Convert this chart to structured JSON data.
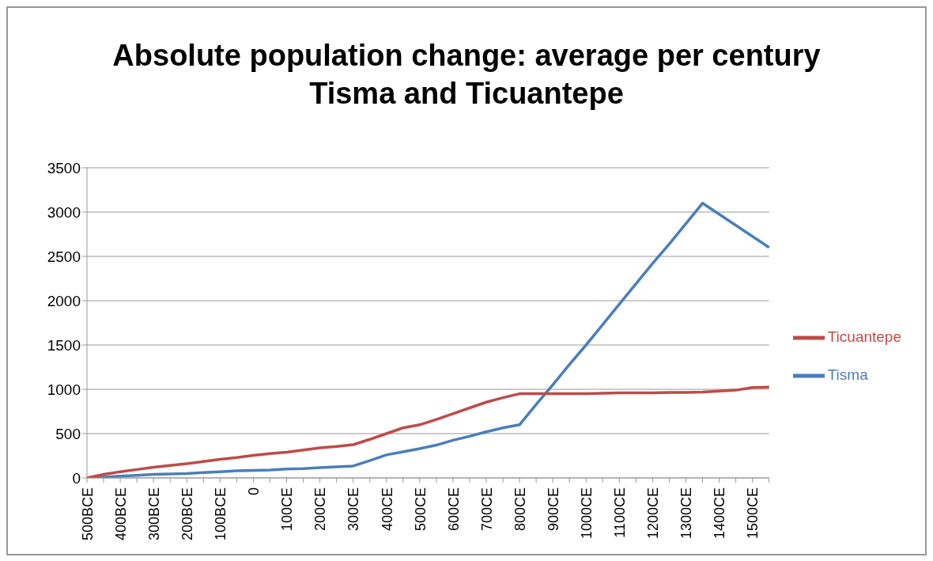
{
  "chart_data": {
    "type": "line",
    "title": "Absolute population change: average per century\nTisma and Ticuantepe",
    "categories": [
      "500BCE",
      null,
      "400BCE",
      null,
      "300BCE",
      null,
      "200BCE",
      null,
      "100BCE",
      null,
      "0",
      null,
      "100CE",
      null,
      "200CE",
      null,
      "300CE",
      null,
      "400CE",
      null,
      "500CE",
      null,
      "600CE",
      null,
      "700CE",
      null,
      "800CE",
      null,
      "900CE",
      null,
      "1000CE",
      null,
      "1100CE",
      null,
      "1200CE",
      null,
      "1300CE",
      null,
      "1400CE",
      null,
      "1500CE",
      null
    ],
    "series": [
      {
        "name": "Tisma",
        "color": "#4a7ebb",
        "values": [
          0,
          10,
          20,
          30,
          40,
          45,
          50,
          60,
          70,
          80,
          85,
          90,
          100,
          105,
          115,
          125,
          135,
          195,
          260,
          295,
          330,
          370,
          425,
          470,
          520,
          565,
          600,
          830,
          1050,
          1280,
          1500,
          1730,
          1960,
          2190,
          2420,
          2640,
          2870,
          3100,
          2975,
          2850,
          2725,
          2600
        ]
      },
      {
        "name": "Ticuantepe",
        "color": "#be4b48",
        "values": [
          0,
          40,
          70,
          95,
          120,
          140,
          160,
          185,
          210,
          230,
          255,
          275,
          290,
          315,
          340,
          355,
          375,
          435,
          500,
          565,
          600,
          660,
          725,
          790,
          855,
          905,
          950,
          950,
          950,
          950,
          950,
          955,
          960,
          960,
          960,
          965,
          965,
          968,
          980,
          990,
          1020,
          1025
        ]
      }
    ],
    "ylim": [
      0,
      3500
    ],
    "yticks": [
      0,
      500,
      1000,
      1500,
      2000,
      2500,
      3000,
      3500
    ],
    "grid": "y",
    "legend": "right",
    "marker": "none",
    "line_style": "solid"
  }
}
